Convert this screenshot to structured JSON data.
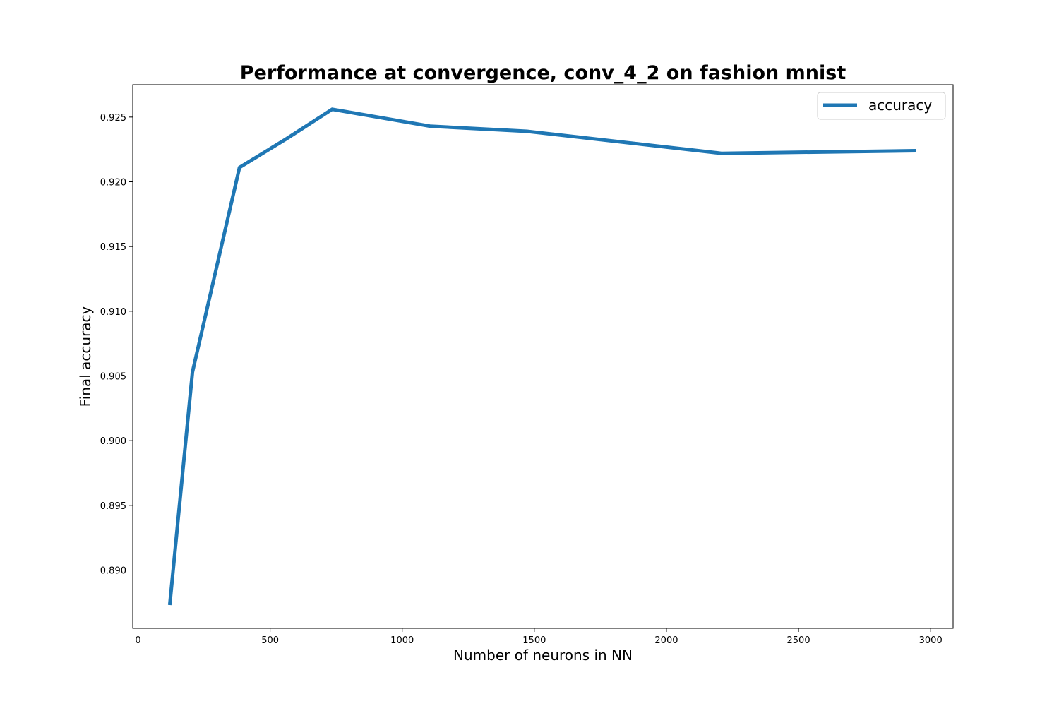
{
  "chart_data": {
    "type": "line",
    "title": "Performance at convergence, conv_4_2 on fashion mnist",
    "xlabel": "Number of neurons in NN",
    "ylabel": "Final accuracy",
    "xlim": [
      -20,
      3085
    ],
    "ylim": [
      0.8855,
      0.9275
    ],
    "xticks": [
      0,
      500,
      1000,
      1500,
      2000,
      2500,
      3000
    ],
    "xtick_labels": [
      "0",
      "500",
      "1000",
      "1500",
      "2000",
      "2500",
      "3000"
    ],
    "yticks": [
      0.89,
      0.895,
      0.9,
      0.905,
      0.91,
      0.915,
      0.92,
      0.925
    ],
    "ytick_labels": [
      "0.890",
      "0.895",
      "0.900",
      "0.905",
      "0.910",
      "0.915",
      "0.920",
      "0.925"
    ],
    "grid": false,
    "legend_position": "top-right",
    "series": [
      {
        "name": "accuracy",
        "color": "#1f77b4",
        "x": [
          120,
          206,
          384,
          560,
          735,
          1105,
          1472,
          2208,
          2944
        ],
        "y": [
          0.8873,
          0.9053,
          0.9211,
          0.9233,
          0.9256,
          0.9243,
          0.9239,
          0.9222,
          0.9224
        ]
      }
    ]
  }
}
